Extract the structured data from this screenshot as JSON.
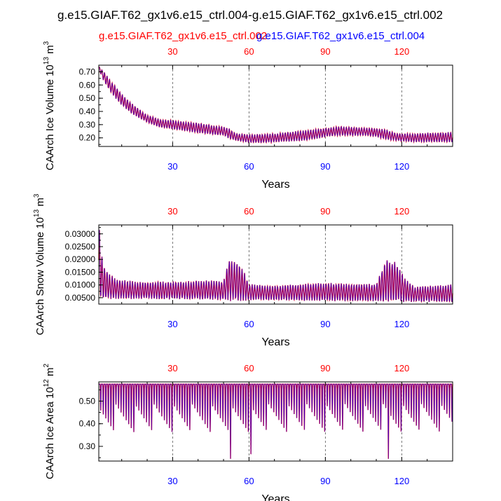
{
  "title": "g.e15.GIAF.T62_gx1v6.e15_ctrl.004-g.e15.GIAF.T62_gx1v6.e15_ctrl.002",
  "colors": {
    "red": "#ff0000",
    "blue": "#0000ff",
    "axis": "#000000",
    "grid": "#555555"
  },
  "chart_data": [
    {
      "type": "line",
      "ylabel": "CAArch Ice Volume 10^13 m^3",
      "ylabel_base": "CAArch Ice Volume 10",
      "ylabel_exp": "13",
      "ylabel_unit": " m",
      "ylabel_unit_exp": "3",
      "xlabel": "Years",
      "xlim": [
        1,
        140
      ],
      "ylim": [
        0.135,
        0.75
      ],
      "yticks": [
        0.2,
        0.3,
        0.4,
        0.5,
        0.6,
        0.7
      ],
      "ytick_labels": [
        "0.20",
        "0.30",
        "0.40",
        "0.50",
        "0.60",
        "0.70"
      ],
      "xticks": [
        30,
        60,
        90,
        120
      ],
      "xtick_labels": [
        "30",
        "60",
        "90",
        "120"
      ],
      "series": [
        {
          "name": "g.e15.GIAF.T62_gx1v6.e15_ctrl.002",
          "color": "#ff0000",
          "min_envelope": [
            [
              1,
              0.72
            ],
            [
              3,
              0.63
            ],
            [
              6,
              0.54
            ],
            [
              10,
              0.45
            ],
            [
              15,
              0.37
            ],
            [
              20,
              0.32
            ],
            [
              25,
              0.28
            ],
            [
              30,
              0.27
            ],
            [
              40,
              0.24
            ],
            [
              50,
              0.22
            ],
            [
              52,
              0.2
            ],
            [
              55,
              0.18
            ],
            [
              60,
              0.165
            ],
            [
              65,
              0.165
            ],
            [
              70,
              0.17
            ],
            [
              80,
              0.18
            ],
            [
              85,
              0.19
            ],
            [
              90,
              0.21
            ],
            [
              95,
              0.22
            ],
            [
              100,
              0.22
            ],
            [
              105,
              0.22
            ],
            [
              110,
              0.21
            ],
            [
              114,
              0.19
            ],
            [
              118,
              0.18
            ],
            [
              125,
              0.17
            ],
            [
              130,
              0.17
            ],
            [
              140,
              0.17
            ]
          ],
          "max_envelope": [
            [
              1,
              0.74
            ],
            [
              3,
              0.7
            ],
            [
              6,
              0.62
            ],
            [
              10,
              0.53
            ],
            [
              15,
              0.44
            ],
            [
              20,
              0.37
            ],
            [
              25,
              0.34
            ],
            [
              30,
              0.33
            ],
            [
              40,
              0.31
            ],
            [
              50,
              0.28
            ],
            [
              52,
              0.27
            ],
            [
              55,
              0.23
            ],
            [
              60,
              0.225
            ],
            [
              65,
              0.225
            ],
            [
              70,
              0.23
            ],
            [
              80,
              0.25
            ],
            [
              85,
              0.26
            ],
            [
              90,
              0.27
            ],
            [
              95,
              0.285
            ],
            [
              100,
              0.28
            ],
            [
              105,
              0.275
            ],
            [
              110,
              0.27
            ],
            [
              114,
              0.26
            ],
            [
              118,
              0.23
            ],
            [
              125,
              0.23
            ],
            [
              130,
              0.235
            ],
            [
              140,
              0.24
            ]
          ]
        },
        {
          "name": "g.e15.GIAF.T62_gx1v6.e15_ctrl.004",
          "color": "#0000ff",
          "min_envelope": [
            [
              1,
              0.72
            ],
            [
              3,
              0.63
            ],
            [
              6,
              0.54
            ],
            [
              10,
              0.45
            ],
            [
              15,
              0.37
            ],
            [
              20,
              0.32
            ],
            [
              25,
              0.28
            ],
            [
              30,
              0.27
            ],
            [
              40,
              0.24
            ],
            [
              50,
              0.22
            ],
            [
              52,
              0.2
            ],
            [
              55,
              0.18
            ],
            [
              60,
              0.165
            ],
            [
              65,
              0.165
            ],
            [
              70,
              0.17
            ],
            [
              80,
              0.18
            ],
            [
              85,
              0.19
            ],
            [
              90,
              0.21
            ],
            [
              95,
              0.22
            ],
            [
              100,
              0.22
            ],
            [
              105,
              0.22
            ],
            [
              110,
              0.21
            ],
            [
              114,
              0.19
            ],
            [
              118,
              0.18
            ],
            [
              125,
              0.17
            ],
            [
              130,
              0.17
            ],
            [
              140,
              0.17
            ]
          ],
          "max_envelope": [
            [
              1,
              0.74
            ],
            [
              3,
              0.7
            ],
            [
              6,
              0.62
            ],
            [
              10,
              0.53
            ],
            [
              15,
              0.44
            ],
            [
              20,
              0.37
            ],
            [
              25,
              0.34
            ],
            [
              30,
              0.33
            ],
            [
              40,
              0.31
            ],
            [
              50,
              0.28
            ],
            [
              52,
              0.27
            ],
            [
              55,
              0.23
            ],
            [
              60,
              0.225
            ],
            [
              65,
              0.225
            ],
            [
              70,
              0.23
            ],
            [
              80,
              0.25
            ],
            [
              85,
              0.26
            ],
            [
              90,
              0.27
            ],
            [
              95,
              0.285
            ],
            [
              100,
              0.28
            ],
            [
              105,
              0.275
            ],
            [
              110,
              0.27
            ],
            [
              114,
              0.26
            ],
            [
              118,
              0.23
            ],
            [
              125,
              0.23
            ],
            [
              130,
              0.235
            ],
            [
              140,
              0.24
            ]
          ]
        }
      ]
    },
    {
      "type": "line",
      "ylabel": "CAArch Snow Volume 10^13 m^3",
      "ylabel_base": "CAArch Snow Volume 10",
      "ylabel_exp": "13",
      "ylabel_unit": " m",
      "ylabel_unit_exp": "3",
      "xlabel": "Years",
      "xlim": [
        1,
        140
      ],
      "ylim": [
        0.0025,
        0.0335
      ],
      "yticks": [
        0.005,
        0.01,
        0.015,
        0.02,
        0.025,
        0.03
      ],
      "ytick_labels": [
        "0.00500",
        "0.01000",
        "0.01500",
        "0.02000",
        "0.02500",
        "0.03000"
      ],
      "xticks": [
        30,
        60,
        90,
        120
      ],
      "xtick_labels": [
        "30",
        "60",
        "90",
        "120"
      ],
      "series": [
        {
          "name": "g.e15.GIAF.T62_gx1v6.e15_ctrl.002",
          "color": "#ff0000",
          "min_envelope": [
            [
              1,
              0.005
            ],
            [
              140,
              0.0035
            ]
          ],
          "max_envelope": [
            [
              1,
              0.033
            ],
            [
              2,
              0.022
            ],
            [
              3,
              0.017
            ],
            [
              5,
              0.014
            ],
            [
              8,
              0.012
            ],
            [
              15,
              0.011
            ],
            [
              30,
              0.011
            ],
            [
              45,
              0.0115
            ],
            [
              50,
              0.011
            ],
            [
              52,
              0.0195
            ],
            [
              56,
              0.018
            ],
            [
              58,
              0.015
            ],
            [
              60,
              0.01
            ],
            [
              70,
              0.0095
            ],
            [
              90,
              0.0105
            ],
            [
              110,
              0.01
            ],
            [
              114,
              0.0195
            ],
            [
              118,
              0.018
            ],
            [
              121,
              0.0125
            ],
            [
              125,
              0.009
            ],
            [
              140,
              0.01
            ]
          ]
        },
        {
          "name": "g.e15.GIAF.T62_gx1v6.e15_ctrl.004",
          "color": "#0000ff",
          "min_envelope": [
            [
              1,
              0.005
            ],
            [
              140,
              0.0035
            ]
          ],
          "max_envelope": [
            [
              1,
              0.033
            ],
            [
              2,
              0.022
            ],
            [
              3,
              0.017
            ],
            [
              5,
              0.014
            ],
            [
              8,
              0.012
            ],
            [
              15,
              0.011
            ],
            [
              30,
              0.011
            ],
            [
              45,
              0.0115
            ],
            [
              50,
              0.011
            ],
            [
              52,
              0.0195
            ],
            [
              56,
              0.018
            ],
            [
              58,
              0.015
            ],
            [
              60,
              0.01
            ],
            [
              70,
              0.0095
            ],
            [
              90,
              0.0105
            ],
            [
              110,
              0.01
            ],
            [
              114,
              0.0195
            ],
            [
              118,
              0.018
            ],
            [
              121,
              0.0125
            ],
            [
              125,
              0.009
            ],
            [
              140,
              0.01
            ]
          ]
        }
      ]
    },
    {
      "type": "line",
      "ylabel": "CAArch Ice Area 10^12 m^2",
      "ylabel_base": "CAArch Ice Area 10",
      "ylabel_exp": "12",
      "ylabel_unit": " m",
      "ylabel_unit_exp": "2",
      "xlabel": "Years",
      "xlim": [
        1,
        140
      ],
      "ylim": [
        0.235,
        0.585
      ],
      "yticks": [
        0.3,
        0.4,
        0.5
      ],
      "ytick_labels": [
        "0.30",
        "0.40",
        "0.50"
      ],
      "xticks": [
        30,
        60,
        90,
        120
      ],
      "xtick_labels": [
        "30",
        "60",
        "90",
        "120"
      ],
      "series": [
        {
          "name": "g.e15.GIAF.T62_gx1v6.e15_ctrl.002",
          "color": "#ff0000",
          "min_envelope": [
            [
              1,
              0.36
            ],
            [
              140,
              0.36
            ]
          ],
          "max_envelope": [
            [
              1,
              0.575
            ],
            [
              140,
              0.575
            ]
          ],
          "deep_dips": [
            [
              52,
              0.245
            ],
            [
              60,
              0.265
            ],
            [
              114,
              0.245
            ]
          ]
        },
        {
          "name": "g.e15.GIAF.T62_gx1v6.e15_ctrl.004",
          "color": "#0000ff",
          "min_envelope": [
            [
              1,
              0.36
            ],
            [
              140,
              0.36
            ]
          ],
          "max_envelope": [
            [
              1,
              0.575
            ],
            [
              140,
              0.575
            ]
          ],
          "deep_dips": [
            [
              52,
              0.245
            ],
            [
              60,
              0.265
            ],
            [
              114,
              0.245
            ]
          ]
        }
      ]
    }
  ]
}
